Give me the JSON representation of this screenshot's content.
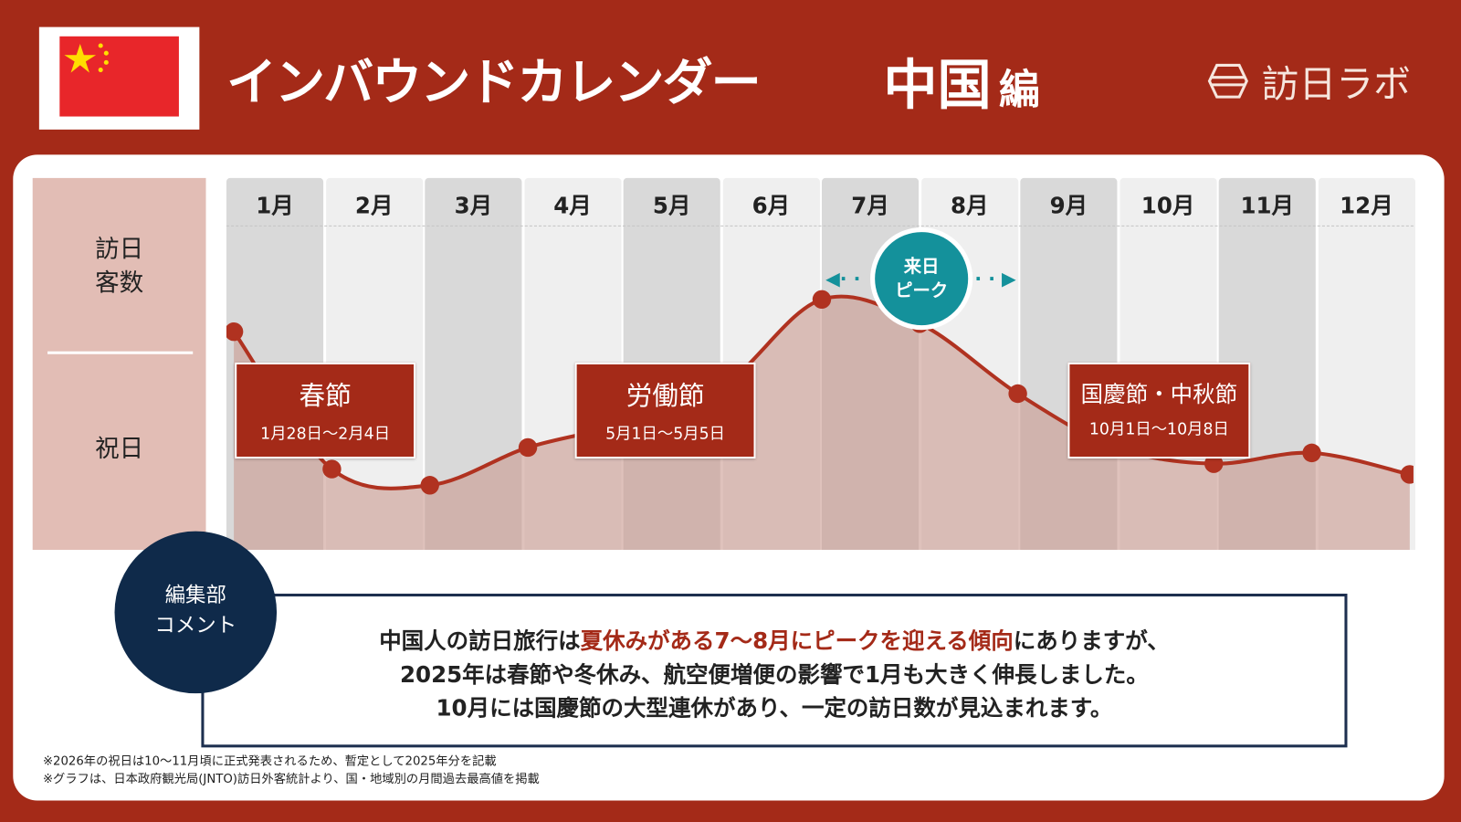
{
  "header": {
    "title": "インバウンドカレンダー",
    "country": "中国",
    "country_suffix": "編",
    "logo_text": "訪日ラボ",
    "flag": "china-flag"
  },
  "side": {
    "visitors_label_1": "訪日",
    "visitors_label_2": "客数",
    "holidays_label": "祝日"
  },
  "months": [
    "1月",
    "2月",
    "3月",
    "4月",
    "5月",
    "6月",
    "7月",
    "8月",
    "9月",
    "10月",
    "11月",
    "12月"
  ],
  "holidays": [
    {
      "name": "春節",
      "dates": "1月28日〜2月4日"
    },
    {
      "name": "労働節",
      "dates": "5月1日〜5月5日"
    },
    {
      "name": "国慶節・中秋節",
      "dates": "10月1日〜10月8日"
    }
  ],
  "peak": {
    "line1": "来日",
    "line2": "ピーク"
  },
  "comment": {
    "badge_1": "編集部",
    "badge_2": "コメント",
    "line1_a": "中国人の訪日旅行は",
    "line1_hl": "夏休みがある7〜8月にピークを迎える傾向",
    "line1_b": "にありますが、",
    "line2": "2025年は春節や冬休み、航空便増便の影響で1月も大きく伸長しました。",
    "line3": "10月には国慶節の大型連休があり、一定の訪日数が見込まれます。"
  },
  "notes": [
    "※2026年の祝日は10〜11月頃に正式発表されるため、暫定として2025年分を記載",
    "※グラフは、日本政府観光局(JNTO)訪日外客統計より、国・地域別の月間過去最高値を掲載"
  ],
  "chart_data": {
    "type": "area",
    "title": "訪日客数 (relative)",
    "x": [
      0,
      1,
      2,
      3,
      4,
      5,
      6,
      7,
      8,
      9,
      10,
      11,
      12
    ],
    "values": [
      81,
      30,
      24,
      38,
      47,
      61,
      93,
      84,
      58,
      38,
      32,
      36,
      28
    ],
    "ylim": [
      0,
      100
    ],
    "line_color": "#b03220",
    "fill_color": "#c99990"
  }
}
